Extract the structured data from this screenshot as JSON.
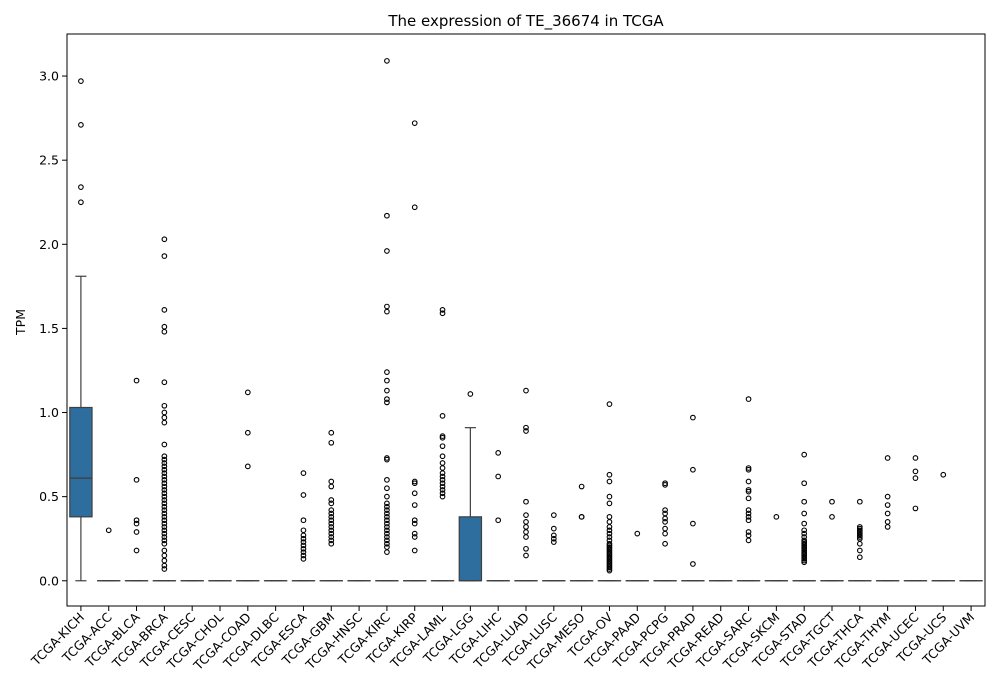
{
  "chart_data": {
    "type": "box",
    "title": "The expression of TE_36674 in TCGA",
    "xlabel": "",
    "ylabel": "TPM",
    "ylim": [
      -0.15,
      3.25
    ],
    "yticks": [
      "0.0",
      "0.5",
      "1.0",
      "1.5",
      "2.0",
      "2.5",
      "3.0"
    ],
    "grid": false,
    "box_color": "#2e6e9e",
    "categories": [
      "TCGA-KICH",
      "TCGA-ACC",
      "TCGA-BLCA",
      "TCGA-BRCA",
      "TCGA-CESC",
      "TCGA-CHOL",
      "TCGA-COAD",
      "TCGA-DLBC",
      "TCGA-ESCA",
      "TCGA-GBM",
      "TCGA-HNSC",
      "TCGA-KIRC",
      "TCGA-KIRP",
      "TCGA-LAML",
      "TCGA-LGG",
      "TCGA-LIHC",
      "TCGA-LUAD",
      "TCGA-LUSC",
      "TCGA-MESO",
      "TCGA-OV",
      "TCGA-PAAD",
      "TCGA-PCPG",
      "TCGA-PRAD",
      "TCGA-READ",
      "TCGA-SARC",
      "TCGA-SKCM",
      "TCGA-STAD",
      "TCGA-TGCT",
      "TCGA-THCA",
      "TCGA-THYM",
      "TCGA-UCEC",
      "TCGA-UCS",
      "TCGA-UVM"
    ],
    "boxes": [
      {
        "q1": 0.38,
        "median": 0.61,
        "q3": 1.03,
        "whisker_low": 0.0,
        "whisker_high": 1.81,
        "outliers": [
          2.97,
          2.71,
          2.34,
          2.25
        ]
      },
      {
        "q1": 0,
        "median": 0,
        "q3": 0,
        "whisker_low": 0,
        "whisker_high": 0,
        "outliers": [
          0.3
        ]
      },
      {
        "q1": 0,
        "median": 0,
        "q3": 0,
        "whisker_low": 0,
        "whisker_high": 0,
        "outliers": [
          1.19,
          0.6,
          0.36,
          0.34,
          0.29,
          0.18
        ]
      },
      {
        "q1": 0,
        "median": 0,
        "q3": 0,
        "whisker_low": 0,
        "whisker_high": 0,
        "outliers": [
          2.03,
          1.93,
          1.61,
          1.51,
          1.48,
          1.18,
          1.04,
          1.0,
          0.97,
          0.94,
          0.81,
          0.74,
          0.72,
          0.7,
          0.68,
          0.66,
          0.64,
          0.62,
          0.6,
          0.58,
          0.56,
          0.54,
          0.52,
          0.5,
          0.48,
          0.46,
          0.44,
          0.42,
          0.4,
          0.38,
          0.36,
          0.34,
          0.32,
          0.3,
          0.28,
          0.26,
          0.24,
          0.22,
          0.18,
          0.15,
          0.12,
          0.09,
          0.07
        ]
      },
      {
        "q1": 0,
        "median": 0,
        "q3": 0,
        "whisker_low": 0,
        "whisker_high": 0,
        "outliers": []
      },
      {
        "q1": 0,
        "median": 0,
        "q3": 0,
        "whisker_low": 0,
        "whisker_high": 0,
        "outliers": []
      },
      {
        "q1": 0,
        "median": 0,
        "q3": 0,
        "whisker_low": 0,
        "whisker_high": 0,
        "outliers": [
          1.12,
          0.88,
          0.68
        ]
      },
      {
        "q1": 0,
        "median": 0,
        "q3": 0,
        "whisker_low": 0,
        "whisker_high": 0,
        "outliers": []
      },
      {
        "q1": 0,
        "median": 0,
        "q3": 0,
        "whisker_low": 0,
        "whisker_high": 0,
        "outliers": [
          0.64,
          0.51,
          0.36,
          0.3,
          0.27,
          0.25,
          0.23,
          0.21,
          0.19,
          0.17,
          0.15,
          0.13
        ]
      },
      {
        "q1": 0,
        "median": 0,
        "q3": 0,
        "whisker_low": 0,
        "whisker_high": 0,
        "outliers": [
          0.88,
          0.82,
          0.59,
          0.56,
          0.48,
          0.46,
          0.42,
          0.4,
          0.38,
          0.36,
          0.34,
          0.32,
          0.3,
          0.28,
          0.26,
          0.24,
          0.22
        ]
      },
      {
        "q1": 0,
        "median": 0,
        "q3": 0,
        "whisker_low": 0,
        "whisker_high": 0,
        "outliers": []
      },
      {
        "q1": 0,
        "median": 0,
        "q3": 0,
        "whisker_low": 0,
        "whisker_high": 0,
        "outliers": [
          3.09,
          2.17,
          1.96,
          1.63,
          1.6,
          1.24,
          1.19,
          1.13,
          1.08,
          1.06,
          0.73,
          0.72,
          0.6,
          0.55,
          0.5,
          0.46,
          0.44,
          0.42,
          0.4,
          0.38,
          0.36,
          0.34,
          0.32,
          0.3,
          0.28,
          0.26,
          0.24,
          0.22,
          0.2,
          0.17
        ]
      },
      {
        "q1": 0,
        "median": 0,
        "q3": 0,
        "whisker_low": 0,
        "whisker_high": 0,
        "outliers": [
          2.72,
          2.22,
          0.59,
          0.58,
          0.52,
          0.45,
          0.36,
          0.34,
          0.28,
          0.26,
          0.18
        ]
      },
      {
        "q1": 0,
        "median": 0,
        "q3": 0,
        "whisker_low": 0,
        "whisker_high": 0,
        "outliers": [
          1.61,
          1.59,
          0.98,
          0.86,
          0.85,
          0.8,
          0.74,
          0.7,
          0.67,
          0.64,
          0.62,
          0.6,
          0.58,
          0.56,
          0.54,
          0.52,
          0.5
        ]
      },
      {
        "q1": 0.0,
        "median": 0.0,
        "q3": 0.38,
        "whisker_low": 0.0,
        "whisker_high": 0.91,
        "outliers": [
          1.11
        ]
      },
      {
        "q1": 0,
        "median": 0,
        "q3": 0,
        "whisker_low": 0,
        "whisker_high": 0,
        "outliers": [
          0.76,
          0.62,
          0.36
        ]
      },
      {
        "q1": 0,
        "median": 0,
        "q3": 0,
        "whisker_low": 0,
        "whisker_high": 0,
        "outliers": [
          1.13,
          0.91,
          0.89,
          0.47,
          0.39,
          0.35,
          0.32,
          0.29,
          0.26,
          0.19,
          0.15
        ]
      },
      {
        "q1": 0,
        "median": 0,
        "q3": 0,
        "whisker_low": 0,
        "whisker_high": 0,
        "outliers": [
          0.39,
          0.31,
          0.27,
          0.25,
          0.23
        ]
      },
      {
        "q1": 0,
        "median": 0,
        "q3": 0,
        "whisker_low": 0,
        "whisker_high": 0,
        "outliers": [
          0.56,
          0.38,
          0.38
        ]
      },
      {
        "q1": 0,
        "median": 0,
        "q3": 0,
        "whisker_low": 0,
        "whisker_high": 0,
        "outliers": [
          1.05,
          0.63,
          0.59,
          0.5,
          0.46,
          0.38,
          0.35,
          0.32,
          0.3,
          0.28,
          0.26,
          0.24,
          0.22,
          0.21,
          0.2,
          0.19,
          0.18,
          0.17,
          0.16,
          0.15,
          0.14,
          0.13,
          0.12,
          0.11,
          0.1,
          0.09,
          0.08,
          0.07,
          0.06
        ]
      },
      {
        "q1": 0,
        "median": 0,
        "q3": 0,
        "whisker_low": 0,
        "whisker_high": 0,
        "outliers": [
          0.28
        ]
      },
      {
        "q1": 0,
        "median": 0,
        "q3": 0,
        "whisker_low": 0,
        "whisker_high": 0,
        "outliers": [
          0.58,
          0.57,
          0.42,
          0.4,
          0.37,
          0.35,
          0.31,
          0.28,
          0.22
        ]
      },
      {
        "q1": 0,
        "median": 0,
        "q3": 0,
        "whisker_low": 0,
        "whisker_high": 0,
        "outliers": [
          0.97,
          0.66,
          0.34,
          0.1
        ]
      },
      {
        "q1": 0,
        "median": 0,
        "q3": 0,
        "whisker_low": 0,
        "whisker_high": 0,
        "outliers": []
      },
      {
        "q1": 0,
        "median": 0,
        "q3": 0,
        "whisker_low": 0,
        "whisker_high": 0,
        "outliers": [
          1.08,
          0.67,
          0.66,
          0.59,
          0.54,
          0.53,
          0.49,
          0.42,
          0.4,
          0.38,
          0.36,
          0.29,
          0.27,
          0.24
        ]
      },
      {
        "q1": 0,
        "median": 0,
        "q3": 0,
        "whisker_low": 0,
        "whisker_high": 0,
        "outliers": [
          0.38
        ]
      },
      {
        "q1": 0,
        "median": 0,
        "q3": 0,
        "whisker_low": 0,
        "whisker_high": 0,
        "outliers": [
          0.75,
          0.58,
          0.47,
          0.4,
          0.34,
          0.3,
          0.28,
          0.26,
          0.24,
          0.23,
          0.22,
          0.21,
          0.2,
          0.19,
          0.18,
          0.17,
          0.16,
          0.15,
          0.14,
          0.13,
          0.12,
          0.11
        ]
      },
      {
        "q1": 0,
        "median": 0,
        "q3": 0,
        "whisker_low": 0,
        "whisker_high": 0,
        "outliers": [
          0.47,
          0.38
        ]
      },
      {
        "q1": 0,
        "median": 0,
        "q3": 0,
        "whisker_low": 0,
        "whisker_high": 0,
        "outliers": [
          0.47,
          0.32,
          0.31,
          0.3,
          0.29,
          0.28,
          0.27,
          0.26,
          0.25,
          0.22,
          0.18,
          0.14
        ]
      },
      {
        "q1": 0,
        "median": 0,
        "q3": 0,
        "whisker_low": 0,
        "whisker_high": 0,
        "outliers": [
          0.73,
          0.5,
          0.45,
          0.4,
          0.35,
          0.32
        ]
      },
      {
        "q1": 0,
        "median": 0,
        "q3": 0,
        "whisker_low": 0,
        "whisker_high": 0,
        "outliers": [
          0.73,
          0.65,
          0.61,
          0.43
        ]
      },
      {
        "q1": 0,
        "median": 0,
        "q3": 0,
        "whisker_low": 0,
        "whisker_high": 0,
        "outliers": [
          0.63
        ]
      },
      {
        "q1": 0,
        "median": 0,
        "q3": 0,
        "whisker_low": 0,
        "whisker_high": 0,
        "outliers": []
      }
    ]
  }
}
